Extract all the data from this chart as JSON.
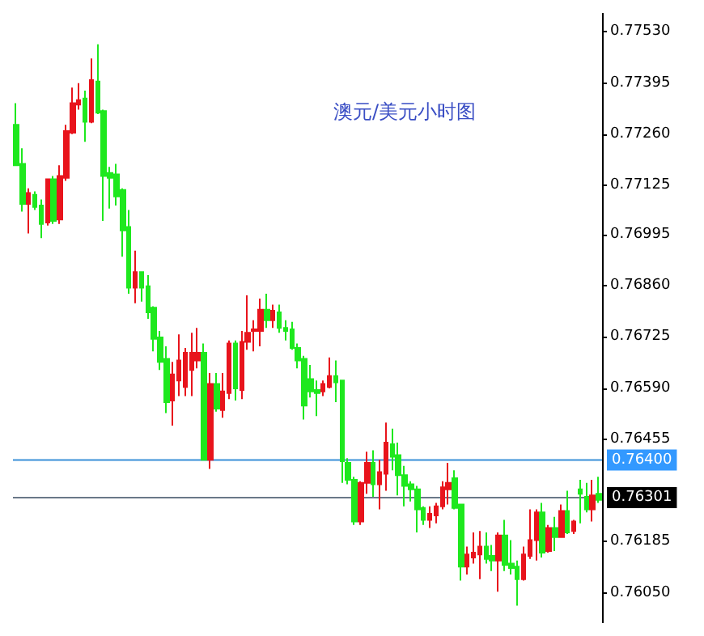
{
  "chart_data": {
    "type": "candlestick",
    "title": "澳元/美元小时图",
    "categories": [
      null,
      null,
      null,
      null,
      null,
      null,
      null,
      null,
      null,
      null,
      null,
      null,
      null,
      null,
      null,
      null,
      null,
      null,
      null,
      null,
      null,
      null,
      null,
      null,
      null,
      null,
      null,
      null,
      null,
      null,
      null,
      null,
      null,
      null,
      null,
      null,
      null,
      null,
      null,
      null,
      null,
      null,
      null,
      null,
      null,
      null,
      null,
      null,
      null,
      null,
      null,
      null,
      null,
      null,
      null,
      null,
      null,
      null,
      null,
      null,
      null,
      null,
      null,
      null,
      null,
      null,
      null,
      null,
      null,
      null,
      null,
      null,
      null,
      null,
      null,
      null,
      null,
      null,
      null,
      null,
      null,
      null,
      null,
      null,
      null,
      null,
      null,
      null,
      null,
      null,
      null,
      null,
      null,
      null
    ],
    "colors": [
      "#1ee81e",
      "#1ee81e",
      "#e8141c",
      "#1ee81e",
      "#1ee81e",
      "#e8141c",
      "#1ee81e",
      "#e8141c",
      "#e8141c",
      "#e8141c",
      "#e8141c",
      "#1ee81e",
      "#e8141c",
      "#1ee81e",
      "#1ee81e",
      "#1ee81e",
      "#1ee81e",
      "#1ee81e",
      "#1ee81e",
      "#e8141c",
      "#1ee81e",
      "#1ee81e",
      "#1ee81e",
      "#1ee81e",
      "#1ee81e",
      "#e8141c",
      "#e8141c",
      "#e8141c",
      "#e8141c",
      "#e8141c",
      "#1ee81e",
      "#e8141c",
      "#1ee81e",
      "#e8141c",
      "#e8141c",
      "#1ee81e",
      "#e8141c",
      "#e8141c",
      "#e8141c",
      "#e8141c",
      "#1ee81e",
      "#e8141c",
      "#1ee81e",
      "#1ee81e",
      "#1ee81e",
      "#1ee81e",
      "#1ee81e",
      "#1ee81e",
      "#1ee81e",
      "#e8141c",
      "#e8141c",
      "#1ee81e",
      "#1ee81e",
      "#1ee81e",
      "#1ee81e",
      "#e8141c",
      "#e8141c",
      "#1ee81e",
      "#e8141c",
      "#e8141c",
      "#1ee81e",
      "#1ee81e",
      "#1ee81e",
      "#1ee81e",
      "#1ee81e",
      "#1ee81e",
      "#e8141c",
      "#e8141c",
      "#e8141c",
      "#e8141c",
      "#1ee81e",
      "#1ee81e",
      "#e8141c",
      "#e8141c",
      "#e8141c",
      "#1ee81e",
      "#1ee81e",
      "#e8141c",
      "#1ee81e",
      "#1ee81e",
      "#1ee81e",
      "#e8141c",
      "#e8141c",
      "#e8141c",
      "#1ee81e",
      "#e8141c",
      "#1ee81e",
      "#e8141c",
      "#1ee81e",
      "#e8141c",
      "#1ee81e",
      "#1ee81e",
      "#e8141c",
      "#1ee81e"
    ],
    "ohlc": [
      [
        0.77285,
        0.77342,
        0.77178,
        0.77178
      ],
      [
        0.77182,
        0.77223,
        0.77056,
        0.77076
      ],
      [
        0.77076,
        0.77117,
        0.76998,
        0.77105
      ],
      [
        0.771,
        0.77109,
        0.7706,
        0.77068
      ],
      [
        0.77072,
        0.77088,
        0.76986,
        0.77023
      ],
      [
        0.77027,
        0.77141,
        0.77019,
        0.77141
      ],
      [
        0.77141,
        0.7715,
        0.77023,
        0.77031
      ],
      [
        0.77035,
        0.77178,
        0.77023,
        0.7715
      ],
      [
        0.77145,
        0.77285,
        0.77137,
        0.77268
      ],
      [
        0.77264,
        0.77383,
        0.7726,
        0.77342
      ],
      [
        0.77338,
        0.77395,
        0.77325,
        0.7735
      ],
      [
        0.77354,
        0.77375,
        0.7724,
        0.77293
      ],
      [
        0.77293,
        0.7746,
        0.77289,
        0.77403
      ],
      [
        0.77399,
        0.77497,
        0.77313,
        0.77317
      ],
      [
        0.77321,
        0.77325,
        0.77031,
        0.7715
      ],
      [
        0.77158,
        0.77174,
        0.77064,
        0.77145
      ],
      [
        0.77154,
        0.77182,
        0.77072,
        0.77096
      ],
      [
        0.77113,
        0.77117,
        0.76937,
        0.77006
      ],
      [
        0.77015,
        0.7706,
        0.76839,
        0.76855
      ],
      [
        0.76855,
        0.76953,
        0.76814,
        0.76896
      ],
      [
        0.76896,
        0.76896,
        0.76818,
        0.76855
      ],
      [
        0.76859,
        0.76888,
        0.76773,
        0.7679
      ],
      [
        0.76802,
        0.76806,
        0.76687,
        0.7672
      ],
      [
        0.76724,
        0.76741,
        0.76638,
        0.76659
      ],
      [
        0.76667,
        0.767,
        0.76524,
        0.76553
      ],
      [
        0.76557,
        0.76659,
        0.76491,
        0.76626
      ],
      [
        0.7661,
        0.76732,
        0.76569,
        0.76663
      ],
      [
        0.76593,
        0.76696,
        0.76569,
        0.76683
      ],
      [
        0.76638,
        0.76736,
        0.76569,
        0.76683
      ],
      [
        0.76663,
        0.76749,
        0.76642,
        0.76683
      ],
      [
        0.76683,
        0.76708,
        0.76401,
        0.76401
      ],
      [
        0.76401,
        0.7663,
        0.76377,
        0.76601
      ],
      [
        0.76601,
        0.7663,
        0.76528,
        0.76536
      ],
      [
        0.76532,
        0.7663,
        0.76512,
        0.76581
      ],
      [
        0.76577,
        0.76716,
        0.76561,
        0.76708
      ],
      [
        0.76708,
        0.76716,
        0.76557,
        0.76589
      ],
      [
        0.76585,
        0.76741,
        0.76561,
        0.76712
      ],
      [
        0.76712,
        0.76835,
        0.76691,
        0.76736
      ],
      [
        0.76741,
        0.76769,
        0.76687,
        0.76745
      ],
      [
        0.76741,
        0.76826,
        0.767,
        0.76797
      ],
      [
        0.76797,
        0.76839,
        0.76749,
        0.76769
      ],
      [
        0.76769,
        0.7681,
        0.76749,
        0.76794
      ],
      [
        0.7679,
        0.7681,
        0.76736,
        0.76749
      ],
      [
        0.76749,
        0.76769,
        0.76716,
        0.76741
      ],
      [
        0.76745,
        0.76765,
        0.76691,
        0.76696
      ],
      [
        0.76696,
        0.76708,
        0.76642,
        0.76663
      ],
      [
        0.76667,
        0.76675,
        0.76507,
        0.76544
      ],
      [
        0.76614,
        0.76651,
        0.76565,
        0.76581
      ],
      [
        0.76585,
        0.7661,
        0.76516,
        0.76577
      ],
      [
        0.76581,
        0.7661,
        0.76569,
        0.76601
      ],
      [
        0.76593,
        0.76671,
        0.76589,
        0.76622
      ],
      [
        0.76622,
        0.76663,
        0.76553,
        0.76605
      ],
      [
        0.7661,
        0.7661,
        0.7634,
        0.76397
      ],
      [
        0.76393,
        0.76405,
        0.76336,
        0.76348
      ],
      [
        0.76348,
        0.76356,
        0.76229,
        0.76238
      ],
      [
        0.76238,
        0.76344,
        0.76229,
        0.7634
      ],
      [
        0.7634,
        0.76422,
        0.76311,
        0.76393
      ],
      [
        0.76393,
        0.76426,
        0.76303,
        0.76336
      ],
      [
        0.76336,
        0.76401,
        0.7627,
        0.76368
      ],
      [
        0.76364,
        0.76499,
        0.76319,
        0.76446
      ],
      [
        0.76442,
        0.76483,
        0.76373,
        0.76409
      ],
      [
        0.76413,
        0.76446,
        0.76307,
        0.7636
      ],
      [
        0.7636,
        0.76385,
        0.76278,
        0.76332
      ],
      [
        0.76336,
        0.76344,
        0.76291,
        0.76323
      ],
      [
        0.76323,
        0.76332,
        0.76209,
        0.7627
      ],
      [
        0.76274,
        0.76278,
        0.76229,
        0.76242
      ],
      [
        0.76242,
        0.76278,
        0.76221,
        0.76258
      ],
      [
        0.76254,
        0.76287,
        0.76233,
        0.76278
      ],
      [
        0.76278,
        0.76344,
        0.7627,
        0.76328
      ],
      [
        0.76323,
        0.76393,
        0.76283,
        0.7634
      ],
      [
        0.76352,
        0.76373,
        0.7627,
        0.76274
      ],
      [
        0.76283,
        0.76283,
        0.76082,
        0.76119
      ],
      [
        0.76119,
        0.76172,
        0.76098,
        0.76151
      ],
      [
        0.76143,
        0.76209,
        0.76127,
        0.76156
      ],
      [
        0.76151,
        0.76213,
        0.76086,
        0.76172
      ],
      [
        0.76172,
        0.76209,
        0.76127,
        0.76139
      ],
      [
        0.76147,
        0.76176,
        0.76107,
        0.76135
      ],
      [
        0.76135,
        0.76209,
        0.76053,
        0.76201
      ],
      [
        0.76201,
        0.76242,
        0.76107,
        0.76123
      ],
      [
        0.76127,
        0.76189,
        0.76098,
        0.76115
      ],
      [
        0.76119,
        0.76135,
        0.76016,
        0.76086
      ],
      [
        0.76086,
        0.76172,
        0.76082,
        0.76151
      ],
      [
        0.76147,
        0.7627,
        0.76139,
        0.76189
      ],
      [
        0.76189,
        0.7627,
        0.76135,
        0.76262
      ],
      [
        0.76262,
        0.76287,
        0.76143,
        0.76156
      ],
      [
        0.7616,
        0.76229,
        0.76156,
        0.76221
      ],
      [
        0.76221,
        0.7625,
        0.7616,
        0.76197
      ],
      [
        0.76197,
        0.76283,
        0.76197,
        0.76266
      ],
      [
        0.76266,
        0.76319,
        0.76205,
        0.76209
      ],
      [
        0.76213,
        0.76242,
        0.76205,
        0.76238
      ],
      [
        0.76323,
        0.76348,
        0.76233,
        0.76311
      ],
      [
        0.76303,
        0.7634,
        0.76262,
        0.7627
      ],
      [
        0.7627,
        0.76348,
        0.76238,
        0.76307
      ],
      [
        0.76311,
        0.76356,
        0.76287,
        0.76295
      ]
    ],
    "ylim": [
      0.7597,
      0.7758
    ],
    "yticks": [
      {
        "value": 0.7753,
        "label": "0.77530"
      },
      0.77395,
      {
        "value": 0.7726,
        "label": "0.77260"
      },
      0.77125,
      0.76995,
      {
        "value": 0.7686,
        "label": "0.76860"
      },
      0.76725,
      {
        "value": 0.7659,
        "label": "0.76590"
      },
      0.76455,
      0.76185,
      {
        "value": 0.7605,
        "label": "0.76050"
      }
    ],
    "ref_lines": [
      {
        "axis": "y",
        "value": 0.764,
        "label": "0.76400",
        "color": "#3a90d8"
      },
      {
        "axis": "y",
        "value": 0.76301,
        "label": "0.76301",
        "color": "#6a7888"
      }
    ],
    "tick_labels": "y",
    "grid": false
  }
}
